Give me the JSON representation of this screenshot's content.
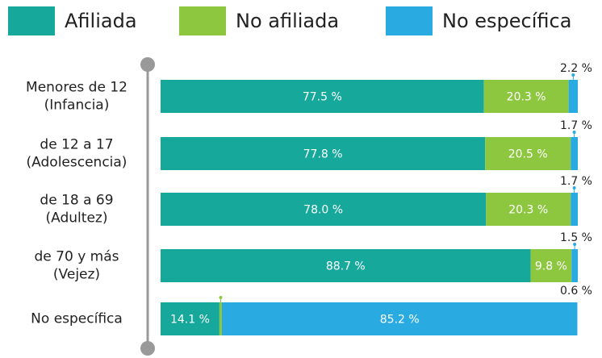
{
  "chart_data": {
    "type": "stacked-bar-horizontal",
    "categories": [
      "Menores de 12\n(Infancia)",
      "de 12 a 17\n(Adolescencia)",
      "de 18 a 69\n(Adultez)",
      "de 70 y más\n(Vejez)",
      "No específica"
    ],
    "series": [
      {
        "name": "Afiliada",
        "color": "#15a89b",
        "values": [
          77.5,
          77.8,
          78.0,
          88.7,
          14.1
        ],
        "value_labels": [
          "77.5 %",
          "77.8 %",
          "78.0 %",
          "88.7 %",
          "14.1 %"
        ]
      },
      {
        "name": "No afiliada",
        "color": "#8dc63f",
        "values": [
          20.3,
          20.5,
          20.3,
          9.8,
          0.6
        ],
        "value_labels": [
          "20.3 %",
          "20.5 %",
          "20.3 %",
          "9.8 %",
          "0.6 %"
        ]
      },
      {
        "name": "No específica",
        "color": "#29abe2",
        "values": [
          2.2,
          1.7,
          1.7,
          1.5,
          85.2
        ],
        "value_labels": [
          "2.2 %",
          "1.7 %",
          "1.7 %",
          "1.5 %",
          "85.2 %"
        ]
      }
    ],
    "xlim": [
      0,
      100
    ],
    "legend": "top"
  }
}
